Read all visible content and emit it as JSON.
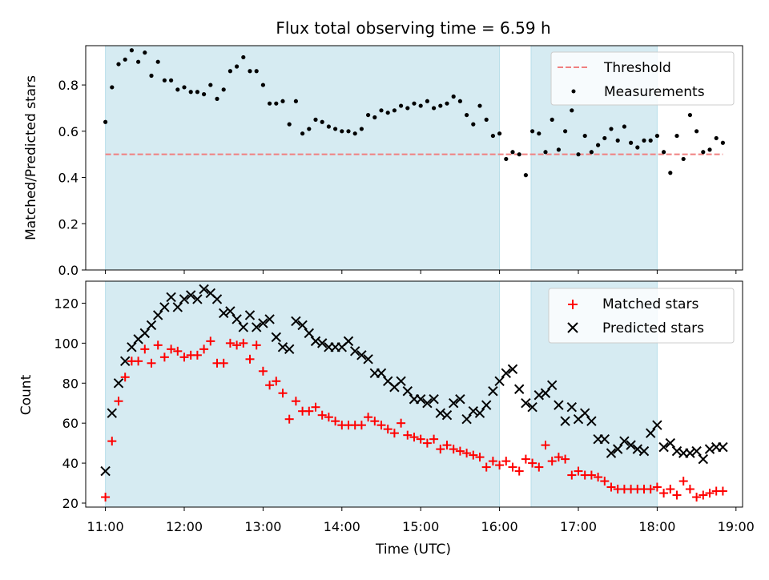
{
  "chart_data": [
    {
      "type": "scatter",
      "title": "Flux total observing time = 6.59 h",
      "ylabel": "Matched/Predicted stars",
      "ylim": [
        0,
        0.97
      ],
      "xlim": [
        "10:45",
        "19:05"
      ],
      "yticks": [
        "0.0",
        "0.2",
        "0.4",
        "0.6",
        "0.8"
      ],
      "shaded_intervals": [
        [
          "11:00",
          "16:00"
        ],
        [
          "16:24",
          "18:00"
        ]
      ],
      "shade_color": "#add8e6",
      "legend": "upper-right",
      "legend_entries": [
        "Threshold",
        "Measurements"
      ],
      "threshold": {
        "name": "Threshold",
        "value": 0.5,
        "x": [
          "11:00",
          "18:50"
        ],
        "color": "#f08080",
        "style": "dashed"
      },
      "series": [
        {
          "name": "Measurements",
          "color": "#000000",
          "marker": "dot",
          "x": [
            "11:00",
            "11:05",
            "11:10",
            "11:15",
            "11:20",
            "11:25",
            "11:30",
            "11:35",
            "11:40",
            "11:45",
            "11:50",
            "11:55",
            "12:00",
            "12:05",
            "12:10",
            "12:15",
            "12:20",
            "12:25",
            "12:30",
            "12:35",
            "12:40",
            "12:45",
            "12:50",
            "12:55",
            "13:00",
            "13:05",
            "13:10",
            "13:15",
            "13:20",
            "13:25",
            "13:30",
            "13:35",
            "13:40",
            "13:45",
            "13:50",
            "13:55",
            "14:00",
            "14:05",
            "14:10",
            "14:15",
            "14:20",
            "14:25",
            "14:30",
            "14:35",
            "14:40",
            "14:45",
            "14:50",
            "14:55",
            "15:00",
            "15:05",
            "15:10",
            "15:15",
            "15:20",
            "15:25",
            "15:30",
            "15:35",
            "15:40",
            "15:45",
            "15:50",
            "15:55",
            "16:00",
            "16:05",
            "16:10",
            "16:15",
            "16:20",
            "16:25",
            "16:30",
            "16:35",
            "16:40",
            "16:45",
            "16:50",
            "16:55",
            "17:00",
            "17:05",
            "17:10",
            "17:15",
            "17:20",
            "17:25",
            "17:30",
            "17:35",
            "17:40",
            "17:45",
            "17:50",
            "17:55",
            "18:00",
            "18:05",
            "18:10",
            "18:15",
            "18:20",
            "18:25",
            "18:30",
            "18:35",
            "18:40",
            "18:45",
            "18:50"
          ],
          "values": [
            0.64,
            0.79,
            0.89,
            0.91,
            0.95,
            0.9,
            0.94,
            0.84,
            0.9,
            0.82,
            0.82,
            0.78,
            0.79,
            0.77,
            0.77,
            0.76,
            0.8,
            0.74,
            0.78,
            0.86,
            0.88,
            0.92,
            0.86,
            0.86,
            0.8,
            0.72,
            0.72,
            0.73,
            0.63,
            0.73,
            0.59,
            0.61,
            0.65,
            0.64,
            0.62,
            0.61,
            0.6,
            0.6,
            0.59,
            0.61,
            0.67,
            0.66,
            0.69,
            0.68,
            0.69,
            0.71,
            0.7,
            0.72,
            0.71,
            0.73,
            0.7,
            0.71,
            0.72,
            0.75,
            0.73,
            0.67,
            0.63,
            0.71,
            0.65,
            0.58,
            0.59,
            0.48,
            0.51,
            0.5,
            0.41,
            0.6,
            0.59,
            0.51,
            0.65,
            0.52,
            0.6,
            0.69,
            0.5,
            0.58,
            0.51,
            0.54,
            0.57,
            0.61,
            0.56,
            0.62,
            0.55,
            0.53,
            0.56,
            0.56,
            0.58,
            0.51,
            0.42,
            0.58,
            0.48,
            0.67,
            0.6,
            0.51,
            0.52,
            0.57,
            0.55
          ]
        }
      ]
    },
    {
      "type": "scatter",
      "xlabel": "Time (UTC)",
      "ylabel": "Count",
      "ylim": [
        18,
        131
      ],
      "xlim": [
        "10:45",
        "19:05"
      ],
      "xticks": [
        "11:00",
        "12:00",
        "13:00",
        "14:00",
        "15:00",
        "16:00",
        "17:00",
        "18:00",
        "19:00"
      ],
      "yticks": [
        "20",
        "40",
        "60",
        "80",
        "100",
        "120"
      ],
      "shaded_intervals": [
        [
          "11:00",
          "16:00"
        ],
        [
          "16:24",
          "18:00"
        ]
      ],
      "shade_color": "#add8e6",
      "legend": "upper-right",
      "legend_entries": [
        "Matched stars",
        "Predicted stars"
      ],
      "series": [
        {
          "name": "Matched stars",
          "color": "#ff0000",
          "marker": "plus",
          "x": [
            "11:00",
            "11:05",
            "11:10",
            "11:15",
            "11:20",
            "11:25",
            "11:30",
            "11:35",
            "11:40",
            "11:45",
            "11:50",
            "11:55",
            "12:00",
            "12:05",
            "12:10",
            "12:15",
            "12:20",
            "12:25",
            "12:30",
            "12:35",
            "12:40",
            "12:45",
            "12:50",
            "12:55",
            "13:00",
            "13:05",
            "13:10",
            "13:15",
            "13:20",
            "13:25",
            "13:30",
            "13:35",
            "13:40",
            "13:45",
            "13:50",
            "13:55",
            "14:00",
            "14:05",
            "14:10",
            "14:15",
            "14:20",
            "14:25",
            "14:30",
            "14:35",
            "14:40",
            "14:45",
            "14:50",
            "14:55",
            "15:00",
            "15:05",
            "15:10",
            "15:15",
            "15:20",
            "15:25",
            "15:30",
            "15:35",
            "15:40",
            "15:45",
            "15:50",
            "15:55",
            "16:00",
            "16:05",
            "16:10",
            "16:15",
            "16:20",
            "16:25",
            "16:30",
            "16:35",
            "16:40",
            "16:45",
            "16:50",
            "16:55",
            "17:00",
            "17:05",
            "17:10",
            "17:15",
            "17:20",
            "17:25",
            "17:30",
            "17:35",
            "17:40",
            "17:45",
            "17:50",
            "17:55",
            "18:00",
            "18:05",
            "18:10",
            "18:15",
            "18:20",
            "18:25",
            "18:30",
            "18:35",
            "18:40",
            "18:45",
            "18:50"
          ],
          "values": [
            23,
            51,
            71,
            83,
            91,
            91,
            97,
            90,
            99,
            93,
            97,
            96,
            93,
            94,
            94,
            97,
            101,
            90,
            90,
            100,
            99,
            100,
            92,
            99,
            86,
            79,
            81,
            75,
            62,
            71,
            66,
            66,
            68,
            64,
            63,
            61,
            59,
            59,
            59,
            59,
            63,
            61,
            59,
            57,
            55,
            60,
            54,
            53,
            52,
            50,
            52,
            47,
            49,
            47,
            46,
            45,
            44,
            43,
            38,
            41,
            39,
            41,
            38,
            36,
            42,
            40,
            38,
            49,
            41,
            43,
            42,
            34,
            36,
            34,
            34,
            33,
            31,
            28,
            27,
            27,
            27,
            27,
            27,
            27,
            28,
            25,
            27,
            24,
            31,
            27,
            23,
            24,
            25,
            26,
            26
          ]
        },
        {
          "name": "Predicted stars",
          "color": "#000000",
          "marker": "x",
          "x": [
            "11:00",
            "11:05",
            "11:10",
            "11:15",
            "11:20",
            "11:25",
            "11:30",
            "11:35",
            "11:40",
            "11:45",
            "11:50",
            "11:55",
            "12:00",
            "12:05",
            "12:10",
            "12:15",
            "12:20",
            "12:25",
            "12:30",
            "12:35",
            "12:40",
            "12:45",
            "12:50",
            "12:55",
            "13:00",
            "13:05",
            "13:10",
            "13:15",
            "13:20",
            "13:25",
            "13:30",
            "13:35",
            "13:40",
            "13:45",
            "13:50",
            "13:55",
            "14:00",
            "14:05",
            "14:10",
            "14:15",
            "14:20",
            "14:25",
            "14:30",
            "14:35",
            "14:40",
            "14:45",
            "14:50",
            "14:55",
            "15:00",
            "15:05",
            "15:10",
            "15:15",
            "15:20",
            "15:25",
            "15:30",
            "15:35",
            "15:40",
            "15:45",
            "15:50",
            "15:55",
            "16:00",
            "16:05",
            "16:10",
            "16:15",
            "16:20",
            "16:25",
            "16:30",
            "16:35",
            "16:40",
            "16:45",
            "16:50",
            "16:55",
            "17:00",
            "17:05",
            "17:10",
            "17:15",
            "17:20",
            "17:25",
            "17:30",
            "17:35",
            "17:40",
            "17:45",
            "17:50",
            "17:55",
            "18:00",
            "18:05",
            "18:10",
            "18:15",
            "18:20",
            "18:25",
            "18:30",
            "18:35",
            "18:40",
            "18:45",
            "18:50"
          ],
          "values": [
            36,
            65,
            80,
            91,
            98,
            102,
            105,
            109,
            114,
            118,
            123,
            118,
            122,
            124,
            122,
            127,
            125,
            122,
            115,
            116,
            112,
            108,
            114,
            108,
            110,
            112,
            103,
            98,
            97,
            111,
            109,
            105,
            101,
            100,
            98,
            98,
            98,
            101,
            96,
            94,
            92,
            85,
            85,
            81,
            78,
            81,
            76,
            72,
            72,
            70,
            72,
            65,
            64,
            70,
            72,
            62,
            66,
            65,
            69,
            76,
            81,
            85,
            87,
            77,
            70,
            68,
            74,
            75,
            79,
            69,
            61,
            68,
            62,
            65,
            61,
            52,
            52,
            45,
            47,
            51,
            49,
            47,
            46,
            55,
            59,
            48,
            50,
            46,
            45,
            45,
            46,
            42,
            47,
            48,
            48
          ]
        }
      ]
    }
  ]
}
